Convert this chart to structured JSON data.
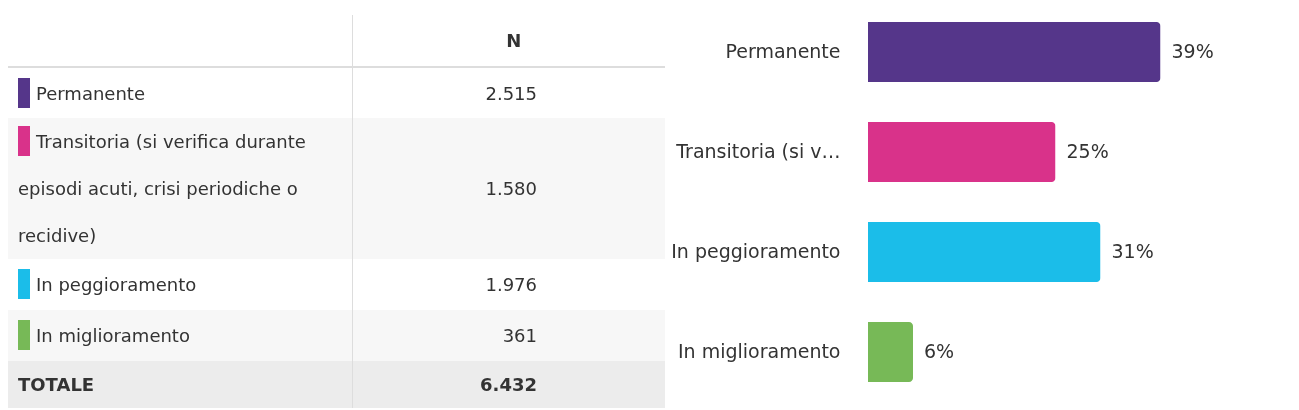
{
  "chart_data": [
    {
      "type": "other",
      "xlabel": "N",
      "categories": [
        "Permanente",
        "Transitoria (si verifica durante episodi acuti, crisi periodiche o recidive)",
        "In peggioramento",
        "In miglioramento"
      ],
      "value_labels": [
        "2.515",
        "1.580",
        "1.976",
        "361"
      ],
      "colors": [
        "#55368a",
        "#d9328a",
        "#1bbde9",
        "#77b957"
      ],
      "annotations": [
        "TOTALE"
      ],
      "totals": [
        "6.432"
      ]
    },
    {
      "type": "bar",
      "orientation": "horizontal",
      "categories": [
        "Permanente",
        "Transitoria (si v…",
        "In peggioramento",
        "In miglioramento"
      ],
      "values": [
        39,
        25,
        31,
        6
      ],
      "value_labels": [
        "39%",
        "25%",
        "31%",
        "6%"
      ],
      "colors": [
        "#55368a",
        "#d9328a",
        "#1bbde9",
        "#77b957"
      ]
    }
  ]
}
